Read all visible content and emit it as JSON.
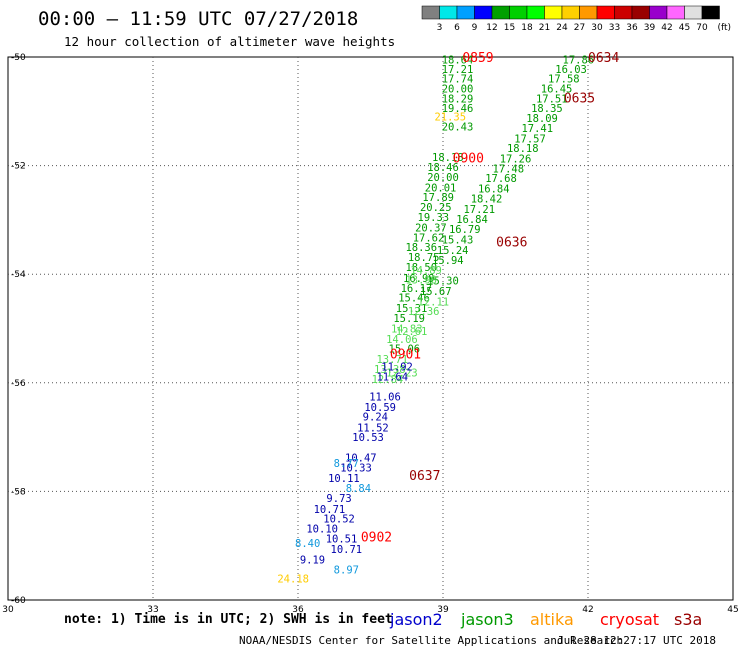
{
  "title": "00:00 – 11:59 UTC 07/27/2018",
  "subtitle": "12 hour collection of altimeter wave heights",
  "note": "note: 1) Time is in UTC; 2) SWH is in feet",
  "credit": "NOAA/NESDIS Center for Satellite Applications and Research",
  "timestamp": "Jul 28 12:27:17 UTC 2018",
  "missions": [
    {
      "name": "jason2",
      "color": "#0000cc"
    },
    {
      "name": "jason3",
      "color": "#009900"
    },
    {
      "name": "altika",
      "color": "#ff9900"
    },
    {
      "name": "cryosat",
      "color": "#ff0000"
    },
    {
      "name": "s3a",
      "color": "#990000"
    }
  ],
  "colorbar": {
    "unit": "(ft)",
    "ticks": [
      "3",
      "6",
      "9",
      "12",
      "15",
      "18",
      "21",
      "24",
      "27",
      "30",
      "33",
      "36",
      "39",
      "42",
      "45",
      "70"
    ],
    "colors": [
      "#808080",
      "#00e8e8",
      "#00a0ff",
      "#0000ff",
      "#00a000",
      "#00d000",
      "#00ff00",
      "#ffff00",
      "#ffd000",
      "#ff9900",
      "#ff0000",
      "#cc0000",
      "#990000",
      "#9900cc",
      "#ff66ff",
      "#e0e0e0",
      "#000000"
    ]
  },
  "chart_data": {
    "type": "scatter",
    "xlim": [
      30,
      45
    ],
    "ylim": [
      -60,
      -50
    ],
    "xticks": [
      "30",
      "33",
      "36",
      "39",
      "42",
      "45"
    ],
    "yticks": [
      "-50",
      "-52",
      "-54",
      "-56",
      "-58",
      "-60"
    ],
    "grid": true,
    "series": [
      {
        "name": "jason3",
        "points": [
          [
            39.3,
            -50.05,
            "18.64"
          ],
          [
            39.3,
            -50.22,
            "17.21"
          ],
          [
            39.3,
            -50.4,
            "17.74"
          ],
          [
            39.3,
            -50.58,
            "20.00"
          ],
          [
            39.3,
            -50.76,
            "18.29"
          ],
          [
            39.3,
            -50.94,
            "19.46"
          ],
          [
            39.3,
            -51.28,
            "20.43"
          ],
          [
            39.1,
            -51.84,
            "18.18"
          ],
          [
            39.0,
            -52.03,
            "18.46"
          ],
          [
            39.0,
            -52.21,
            "20.00"
          ],
          [
            38.95,
            -52.4,
            "20.01"
          ],
          [
            38.9,
            -52.58,
            "17.89"
          ],
          [
            38.85,
            -52.76,
            "20.25"
          ],
          [
            38.8,
            -52.95,
            "19.33"
          ],
          [
            38.75,
            -53.14,
            "20.37"
          ],
          [
            38.7,
            -53.32,
            "17.62"
          ],
          [
            38.55,
            -53.5,
            "18.36"
          ],
          [
            38.6,
            -53.68,
            "18.75"
          ],
          [
            38.55,
            -53.87,
            "18.50"
          ],
          [
            38.5,
            -54.07,
            "16.99"
          ],
          [
            38.45,
            -54.25,
            "16.17"
          ],
          [
            38.4,
            -54.43,
            "15.46"
          ],
          [
            38.35,
            -54.62,
            "15.31"
          ],
          [
            38.3,
            -54.81,
            "15.19"
          ],
          [
            38.2,
            -55.37,
            "15.06"
          ],
          [
            41.8,
            -50.05,
            "17.86"
          ],
          [
            41.65,
            -50.22,
            "16.03"
          ],
          [
            41.5,
            -50.4,
            "17.58"
          ],
          [
            41.35,
            -50.58,
            "16.45"
          ],
          [
            41.25,
            -50.76,
            "17.51"
          ],
          [
            41.15,
            -50.94,
            "18.35"
          ],
          [
            41.05,
            -51.12,
            "18.09"
          ],
          [
            40.95,
            -51.31,
            "17.41"
          ],
          [
            40.8,
            -51.5,
            "17.57"
          ],
          [
            40.65,
            -51.68,
            "18.18"
          ],
          [
            40.5,
            -51.87,
            "17.26"
          ],
          [
            40.35,
            -52.05,
            "17.48"
          ],
          [
            40.2,
            -52.23,
            "17.68"
          ],
          [
            40.05,
            -52.42,
            "16.84"
          ],
          [
            39.9,
            -52.61,
            "18.42"
          ],
          [
            39.75,
            -52.8,
            "17.21"
          ],
          [
            39.6,
            -52.98,
            "16.84"
          ],
          [
            39.45,
            -53.17,
            "16.79"
          ],
          [
            39.3,
            -53.36,
            "15.43"
          ],
          [
            39.2,
            -53.55,
            "15.24"
          ],
          [
            39.1,
            -53.74,
            "15.94"
          ],
          [
            39.0,
            -54.12,
            "15.30"
          ],
          [
            38.85,
            -54.31,
            "15.67"
          ]
        ]
      },
      {
        "name": "jason3-light",
        "points": [
          [
            38.25,
            -55.0,
            "14.83"
          ],
          [
            38.15,
            -55.19,
            "14.06"
          ],
          [
            37.95,
            -55.56,
            "13.71"
          ],
          [
            37.9,
            -55.75,
            "13.38"
          ],
          [
            37.85,
            -55.93,
            "12.84"
          ],
          [
            38.8,
            -54.5,
            "12.11"
          ],
          [
            38.6,
            -54.68,
            "12.36"
          ],
          [
            38.35,
            -55.05,
            "12.61"
          ],
          [
            38.15,
            -55.81,
            "12.23"
          ],
          [
            38.65,
            -53.92,
            "14.89"
          ],
          [
            38.55,
            -54.1,
            "13.90"
          ]
        ]
      },
      {
        "name": "jason2",
        "points": [
          [
            38.05,
            -55.7,
            "11.92"
          ],
          [
            37.95,
            -55.88,
            "11.64"
          ],
          [
            37.8,
            -56.25,
            "11.06"
          ],
          [
            37.7,
            -56.45,
            "10.59"
          ],
          [
            37.6,
            -56.62,
            "9.24"
          ],
          [
            37.55,
            -56.82,
            "11.52"
          ],
          [
            37.45,
            -57.0,
            "10.53"
          ],
          [
            37.3,
            -57.38,
            "10.47"
          ],
          [
            37.2,
            -57.56,
            "10.33"
          ],
          [
            36.95,
            -57.75,
            "10.11"
          ],
          [
            36.85,
            -58.12,
            "9.73"
          ],
          [
            36.65,
            -58.32,
            "10.71"
          ],
          [
            36.85,
            -58.5,
            "10.52"
          ],
          [
            36.5,
            -58.68,
            "10.10"
          ],
          [
            36.9,
            -58.87,
            "10.51"
          ],
          [
            36.3,
            -59.25,
            "9.19"
          ],
          [
            37.0,
            -59.06,
            "10.71"
          ]
        ]
      },
      {
        "name": "jason2-cyan",
        "points": [
          [
            37.25,
            -57.94,
            "8.84"
          ],
          [
            37.0,
            -57.48,
            "8.77"
          ],
          [
            36.2,
            -58.95,
            "8.40"
          ],
          [
            37.0,
            -59.44,
            "8.97"
          ]
        ]
      },
      {
        "name": "altika",
        "points": [
          [
            39.15,
            -51.1,
            "21.35"
          ],
          [
            35.9,
            -59.6,
            "24.18"
          ]
        ]
      }
    ],
    "pass_labels": [
      {
        "text": "0859",
        "x": 39.4,
        "y": -50.0,
        "mission": "cryosat"
      },
      {
        "text": "0900",
        "x": 39.2,
        "y": -51.85,
        "mission": "cryosat"
      },
      {
        "text": "0901",
        "x": 37.9,
        "y": -55.46,
        "mission": "cryosat"
      },
      {
        "text": "0902",
        "x": 37.3,
        "y": -58.83,
        "mission": "cryosat"
      },
      {
        "text": "0634",
        "x": 42.0,
        "y": -50.0,
        "mission": "s3a"
      },
      {
        "text": "0635",
        "x": 41.5,
        "y": -50.75,
        "mission": "s3a"
      },
      {
        "text": "0636",
        "x": 40.1,
        "y": -53.4,
        "mission": "s3a"
      },
      {
        "text": "0637",
        "x": 38.3,
        "y": -57.7,
        "mission": "s3a"
      }
    ]
  }
}
